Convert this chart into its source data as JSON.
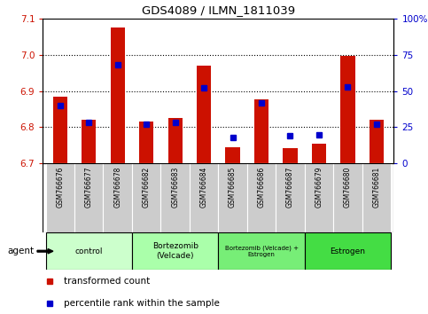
{
  "title": "GDS4089 / ILMN_1811039",
  "samples": [
    "GSM766676",
    "GSM766677",
    "GSM766678",
    "GSM766682",
    "GSM766683",
    "GSM766684",
    "GSM766685",
    "GSM766686",
    "GSM766687",
    "GSM766679",
    "GSM766680",
    "GSM766681"
  ],
  "red_values": [
    6.885,
    6.82,
    7.075,
    6.815,
    6.825,
    6.97,
    6.745,
    6.878,
    6.742,
    6.755,
    6.997,
    6.82
  ],
  "blue_values": [
    40,
    28,
    68,
    27,
    28,
    52,
    18,
    42,
    19,
    20,
    53,
    27
  ],
  "ylim_left": [
    6.7,
    7.1
  ],
  "ylim_right": [
    0,
    100
  ],
  "yticks_left": [
    6.7,
    6.8,
    6.9,
    7.0,
    7.1
  ],
  "yticks_right": [
    0,
    25,
    50,
    75,
    100
  ],
  "ytick_labels_right": [
    "0",
    "25",
    "50",
    "75",
    "100%"
  ],
  "bar_width": 0.5,
  "blue_marker_size": 5,
  "red_color": "#cc1100",
  "blue_color": "#0000cc",
  "background_plot": "#ffffff",
  "sample_cell_color": "#cccccc",
  "group_defs": [
    {
      "start": 0,
      "end": 2,
      "label": "control",
      "color": "#ccffcc"
    },
    {
      "start": 3,
      "end": 5,
      "label": "Bortezomib\n(Velcade)",
      "color": "#aaffaa"
    },
    {
      "start": 6,
      "end": 8,
      "label": "Bortezomib (Velcade) +\nEstrogen",
      "color": "#77ee77"
    },
    {
      "start": 9,
      "end": 11,
      "label": "Estrogen",
      "color": "#44dd44"
    }
  ],
  "agent_label": "agent",
  "legend_red": "transformed count",
  "legend_blue": "percentile rank within the sample"
}
